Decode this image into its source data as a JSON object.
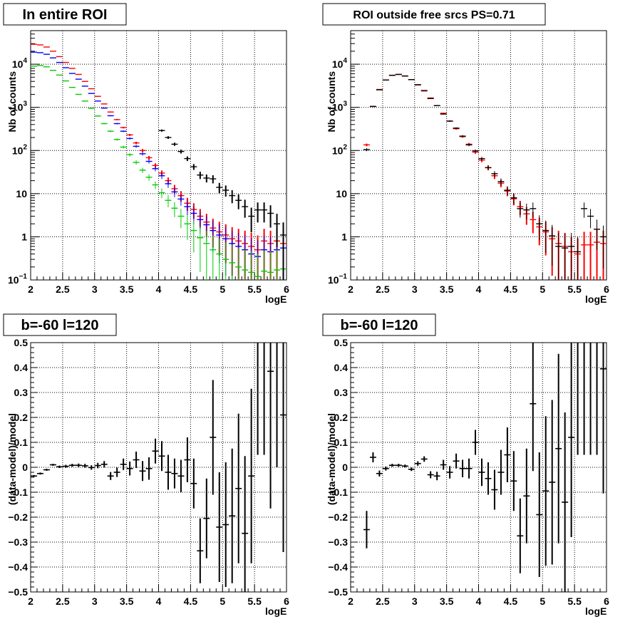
{
  "chart_data": [
    {
      "type": "scatter",
      "title": "In entire ROI",
      "xlabel": "logE",
      "ylabel": "Nb of counts",
      "xlim": [
        2,
        6
      ],
      "ylim": [
        0.1,
        60000
      ],
      "yscale": "log",
      "grid": true,
      "x_ticks": [
        "2",
        "2.5",
        "3",
        "3.5",
        "4",
        "4.5",
        "5",
        "5.5",
        "6"
      ],
      "y_ticks": [
        {
          "value": 0.1,
          "base": "10",
          "exp": "−1"
        },
        {
          "value": 1,
          "label": "1"
        },
        {
          "value": 10,
          "label": "10"
        },
        {
          "value": 100,
          "base": "10",
          "exp": "2"
        },
        {
          "value": 1000,
          "base": "10",
          "exp": "3"
        },
        {
          "value": 10000,
          "base": "10",
          "exp": "4"
        }
      ],
      "x": [
        2.05,
        2.15,
        2.25,
        2.35,
        2.45,
        2.55,
        2.65,
        2.75,
        2.85,
        2.95,
        3.05,
        3.15,
        3.25,
        3.35,
        3.45,
        3.55,
        3.65,
        3.75,
        3.85,
        3.95,
        4.05,
        4.15,
        4.25,
        4.35,
        4.45,
        4.55,
        4.65,
        4.75,
        4.85,
        4.95,
        5.05,
        5.15,
        5.25,
        5.35,
        5.45,
        5.55,
        5.65,
        5.75,
        5.85,
        5.95
      ],
      "series": [
        {
          "color": "#ff0000",
          "values": [
            29000,
            28000,
            25000,
            20000,
            15000,
            11000,
            8000,
            5800,
            4000,
            2700,
            1800,
            1200,
            780,
            520,
            340,
            230,
            150,
            100,
            68,
            45,
            30,
            20,
            13,
            9,
            6,
            4.3,
            3,
            2.2,
            1.6,
            1.3,
            1.1,
            0.9,
            0.8,
            0.7,
            0.6,
            0.5,
            0.8,
            0.7,
            0.8,
            0.7
          ]
        },
        {
          "color": "#0000ff",
          "values": [
            19000,
            18500,
            17000,
            14000,
            11000,
            8300,
            6100,
            4500,
            3100,
            2100,
            1400,
            960,
            640,
            420,
            280,
            190,
            125,
            84,
            56,
            38,
            26,
            17,
            11,
            7.5,
            5,
            3.5,
            2.5,
            1.9,
            1.4,
            1.1,
            0.9,
            0.7,
            0.6,
            0.5,
            0.4,
            0.35,
            0.5,
            0.45,
            0.5,
            0.55
          ]
        },
        {
          "color": "#00cc00",
          "values": [
            9000,
            9300,
            8700,
            7200,
            5600,
            4100,
            2900,
            2000,
            1400,
            950,
            630,
            420,
            280,
            180,
            120,
            80,
            53,
            35,
            24,
            16,
            10.5,
            7,
            4.6,
            3,
            2,
            1.4,
            0.95,
            0.7,
            0.5,
            0.4,
            0.3,
            0.25,
            0.2,
            0.17,
            0.15,
            0.12,
            0.16,
            0.15,
            0.17,
            0.18
          ]
        },
        {
          "color": "#000000",
          "values": [
            null,
            null,
            null,
            null,
            null,
            null,
            null,
            null,
            null,
            null,
            null,
            null,
            null,
            null,
            null,
            null,
            null,
            null,
            null,
            null,
            290,
            200,
            140,
            95,
            65,
            42,
            27,
            23,
            22,
            14,
            12,
            9,
            7,
            5,
            3,
            4.2,
            4.2,
            3.5,
            2,
            1.1
          ]
        }
      ]
    },
    {
      "type": "scatter",
      "title": "ROI outside free srcs PS=0.71",
      "xlabel": "logE",
      "ylabel": "Nb of counts",
      "xlim": [
        2,
        6
      ],
      "ylim": [
        0.1,
        60000
      ],
      "yscale": "log",
      "grid": true,
      "x_ticks": [
        "2",
        "2.5",
        "3",
        "3.5",
        "4",
        "4.5",
        "5",
        "5.5",
        "6"
      ],
      "y_ticks": [
        {
          "value": 0.1,
          "base": "10",
          "exp": "−1"
        },
        {
          "value": 1,
          "label": "1"
        },
        {
          "value": 10,
          "label": "10"
        },
        {
          "value": 100,
          "base": "10",
          "exp": "2"
        },
        {
          "value": 1000,
          "base": "10",
          "exp": "3"
        },
        {
          "value": 10000,
          "base": "10",
          "exp": "4"
        }
      ],
      "x": [
        2.25,
        2.35,
        2.45,
        2.55,
        2.65,
        2.75,
        2.85,
        2.95,
        3.05,
        3.15,
        3.25,
        3.35,
        3.45,
        3.55,
        3.65,
        3.75,
        3.85,
        3.95,
        4.05,
        4.15,
        4.25,
        4.35,
        4.45,
        4.55,
        4.65,
        4.75,
        4.85,
        4.95,
        5.05,
        5.15,
        5.25,
        5.35,
        5.45,
        5.55,
        5.65,
        5.75,
        5.85,
        5.95
      ],
      "series": [
        {
          "color": "#ff0000",
          "values": [
            135,
            1050,
            2600,
            4300,
            5500,
            5800,
            5300,
            4400,
            3300,
            2400,
            1650,
            1100,
            730,
            480,
            320,
            210,
            140,
            92,
            60,
            40,
            26,
            17.5,
            11.5,
            7.6,
            5,
            3.4,
            2.5,
            1.7,
            1.3,
            0.9,
            0.7,
            0.6,
            0.45,
            0.4,
            0.65,
            0.65,
            0.75,
            0.7
          ]
        },
        {
          "color": "#000000",
          "values": [
            105,
            1050,
            2550,
            4300,
            5550,
            5800,
            5350,
            4400,
            3350,
            2450,
            1600,
            1100,
            700,
            480,
            330,
            215,
            135,
            98,
            65,
            40,
            29,
            19,
            12,
            8,
            4.5,
            4.2,
            4.5,
            2,
            1.4,
            1.05,
            0.6,
            0.55,
            0.6,
            0.45,
            4.5,
            3,
            1.5,
            1
          ]
        }
      ]
    },
    {
      "type": "scatter",
      "title": "b=-60 l=120",
      "xlabel": "logE",
      "ylabel": "(data-model)/model",
      "xlim": [
        2,
        6
      ],
      "ylim": [
        -0.5,
        0.5
      ],
      "yscale": "linear",
      "grid": true,
      "x_ticks": [
        "2",
        "2.5",
        "3",
        "3.5",
        "4",
        "4.5",
        "5",
        "5.5",
        "6"
      ],
      "y_ticks": [
        "−0.5",
        "−0.4",
        "−0.3",
        "−0.2",
        "−0.1",
        "0",
        "0.1",
        "0.2",
        "0.3",
        "0.4",
        "0.5"
      ],
      "x": [
        2.05,
        2.15,
        2.25,
        2.35,
        2.45,
        2.55,
        2.65,
        2.75,
        2.85,
        2.95,
        3.05,
        3.15,
        3.25,
        3.35,
        3.45,
        3.55,
        3.65,
        3.75,
        3.85,
        3.95,
        4.05,
        4.15,
        4.25,
        4.35,
        4.45,
        4.55,
        4.65,
        4.75,
        4.85,
        4.95,
        5.05,
        5.15,
        5.25,
        5.35,
        5.45,
        5.55,
        5.65,
        5.75,
        5.85,
        5.95
      ],
      "series": [
        {
          "color": "#000000",
          "values": [
            -0.035,
            -0.025,
            -0.01,
            0.01,
            0.002,
            0.004,
            0.008,
            0.008,
            0.006,
            -0.001,
            0.007,
            0.012,
            -0.035,
            -0.02,
            0.012,
            -0.005,
            0.03,
            -0.015,
            -0.005,
            0.065,
            0.045,
            -0.02,
            -0.025,
            -0.035,
            0.03,
            -0.065,
            -0.335,
            -0.205,
            0.12,
            -0.24,
            -0.23,
            -0.195,
            -0.085,
            -0.265,
            -0.035,
            0.55,
            0.55,
            0.385,
            0.55,
            0.21
          ],
          "errors": [
            0.004,
            0.004,
            0.004,
            0.004,
            0.005,
            0.006,
            0.006,
            0.007,
            0.008,
            0.009,
            0.011,
            0.013,
            0.016,
            0.019,
            0.023,
            0.028,
            0.033,
            0.04,
            0.045,
            0.05,
            0.06,
            0.07,
            0.06,
            0.065,
            0.09,
            0.1,
            0.13,
            0.16,
            0.23,
            0.22,
            0.25,
            0.27,
            0.3,
            0.31,
            0.35,
            0.5,
            0.5,
            0.55,
            0.55,
            0.55
          ]
        }
      ]
    },
    {
      "type": "scatter",
      "title": "b=-60 l=120",
      "xlabel": "logE",
      "ylabel": "(data-model)/model",
      "xlim": [
        2,
        6
      ],
      "ylim": [
        -0.5,
        0.5
      ],
      "yscale": "linear",
      "grid": true,
      "x_ticks": [
        "2",
        "2.5",
        "3",
        "3.5",
        "4",
        "4.5",
        "5",
        "5.5",
        "6"
      ],
      "y_ticks": [
        "−0.5",
        "−0.4",
        "−0.3",
        "−0.2",
        "−0.1",
        "0",
        "0.1",
        "0.2",
        "0.3",
        "0.4",
        "0.5"
      ],
      "x": [
        2.25,
        2.35,
        2.45,
        2.55,
        2.65,
        2.75,
        2.85,
        2.95,
        3.05,
        3.15,
        3.25,
        3.35,
        3.45,
        3.55,
        3.65,
        3.75,
        3.85,
        3.95,
        4.05,
        4.15,
        4.25,
        4.35,
        4.45,
        4.55,
        4.65,
        4.75,
        4.85,
        4.95,
        5.05,
        5.15,
        5.25,
        5.35,
        5.45,
        5.55,
        5.65,
        5.75,
        5.85,
        5.95
      ],
      "series": [
        {
          "color": "#000000",
          "values": [
            -0.25,
            0.04,
            -0.025,
            -0.005,
            0.008,
            0.008,
            0.005,
            -0.008,
            0.015,
            0.033,
            -0.03,
            -0.035,
            0.01,
            -0.02,
            0.025,
            -0.005,
            -0.005,
            0.1,
            -0.02,
            -0.045,
            -0.09,
            -0.02,
            0.05,
            -0.055,
            -0.275,
            -0.115,
            0.255,
            -0.19,
            -0.095,
            -0.06,
            0.075,
            -0.14,
            0.12,
            0.55,
            0.55,
            0.55,
            0.55,
            0.395
          ],
          "errors": [
            0.075,
            0.02,
            0.012,
            0.008,
            0.006,
            0.006,
            0.006,
            0.007,
            0.009,
            0.011,
            0.014,
            0.017,
            0.02,
            0.025,
            0.03,
            0.035,
            0.04,
            0.05,
            0.055,
            0.065,
            0.08,
            0.09,
            0.11,
            0.12,
            0.15,
            0.19,
            0.27,
            0.25,
            0.3,
            0.33,
            0.38,
            0.36,
            0.4,
            0.5,
            0.5,
            0.5,
            0.5,
            0.5
          ]
        }
      ]
    }
  ]
}
